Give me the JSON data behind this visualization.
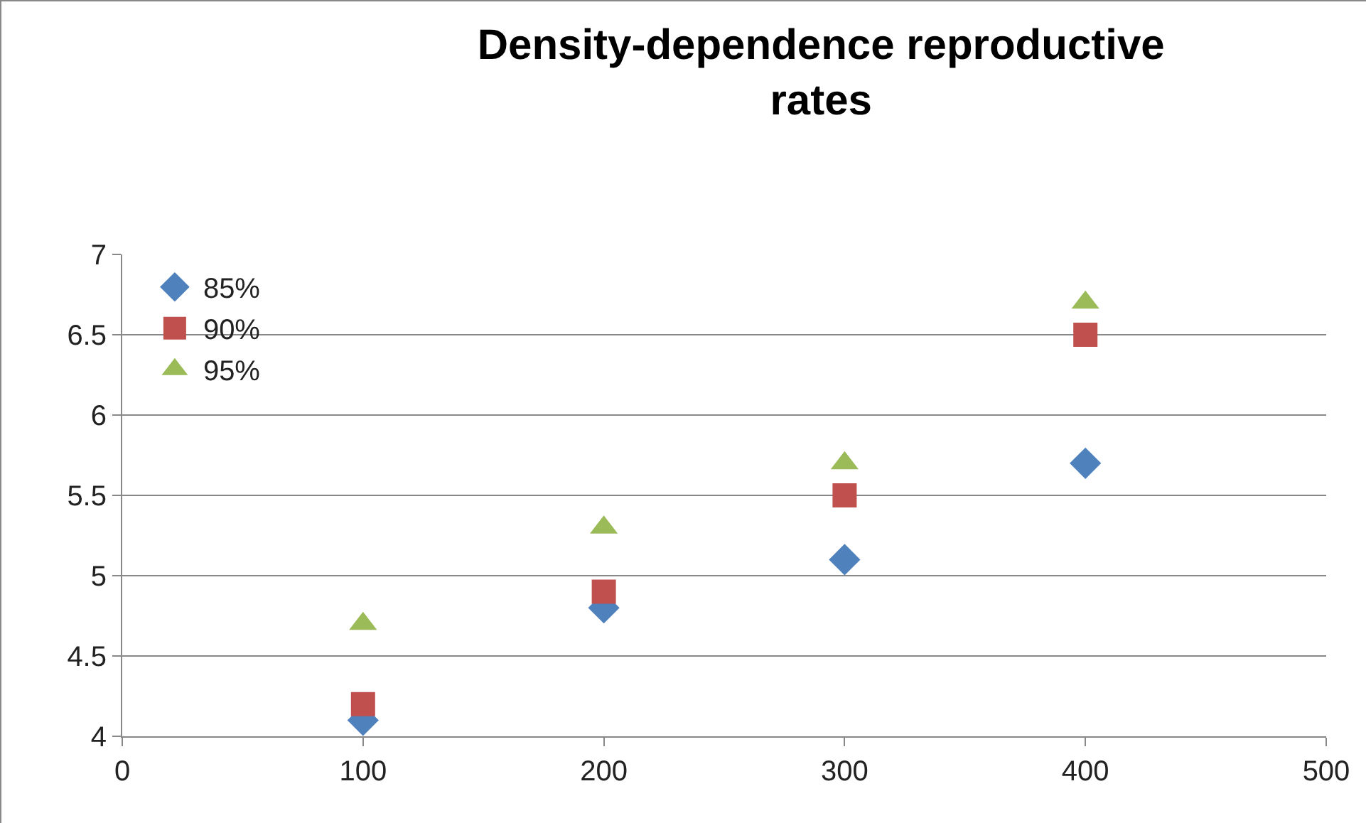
{
  "chart_data": {
    "type": "scatter",
    "title": "Density-dependence reproductive rates",
    "x": [
      100,
      200,
      300,
      400
    ],
    "series": [
      {
        "name": "85%",
        "color": "#4f81bd",
        "marker": "diamond",
        "values": [
          4.1,
          4.8,
          5.1,
          5.7
        ]
      },
      {
        "name": "90%",
        "color": "#c0504d",
        "marker": "square",
        "values": [
          4.2,
          4.9,
          5.5,
          6.5
        ]
      },
      {
        "name": "95%",
        "color": "#9bbb59",
        "marker": "triangle",
        "values": [
          4.7,
          5.3,
          5.7,
          6.7
        ]
      }
    ],
    "xlim": [
      0,
      500
    ],
    "xticks": [
      0,
      100,
      200,
      300,
      400,
      500
    ],
    "ylim": [
      4,
      7
    ],
    "yticks": [
      4,
      4.5,
      5,
      5.5,
      6,
      6.5,
      7
    ],
    "grid": "y",
    "legend": "top left"
  }
}
